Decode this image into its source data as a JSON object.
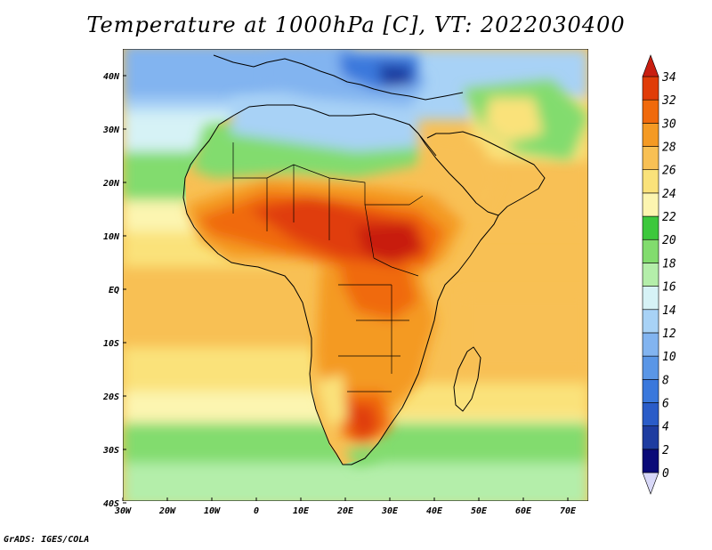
{
  "title": "Temperature at 1000hPa [C], VT: 2022030400",
  "credit": "GrADS: IGES/COLA",
  "map": {
    "lon_labels": [
      "30W",
      "20W",
      "10W",
      "0",
      "10E",
      "20E",
      "30E",
      "40E",
      "50E",
      "60E",
      "70E"
    ],
    "lat_labels": [
      "40N",
      "30N",
      "20N",
      "10N",
      "EQ",
      "10S",
      "20S",
      "30S",
      "40S"
    ]
  },
  "colorbar": {
    "levels": [
      "0",
      "2",
      "4",
      "6",
      "8",
      "10",
      "12",
      "14",
      "16",
      "18",
      "20",
      "22",
      "24",
      "26",
      "28",
      "30",
      "32",
      "34"
    ],
    "colors": [
      "#d8d8f8",
      "#0a0a78",
      "#1e3ca0",
      "#2a5cc8",
      "#3a78dc",
      "#5a96e6",
      "#82b4f0",
      "#a8d2f6",
      "#d6f2f6",
      "#b4eeaa",
      "#82dc6e",
      "#3cc83c",
      "#fcf5b0",
      "#fae27a",
      "#f8c054",
      "#f49a24",
      "#f06a0c",
      "#e03c08",
      "#c81e10"
    ]
  }
}
